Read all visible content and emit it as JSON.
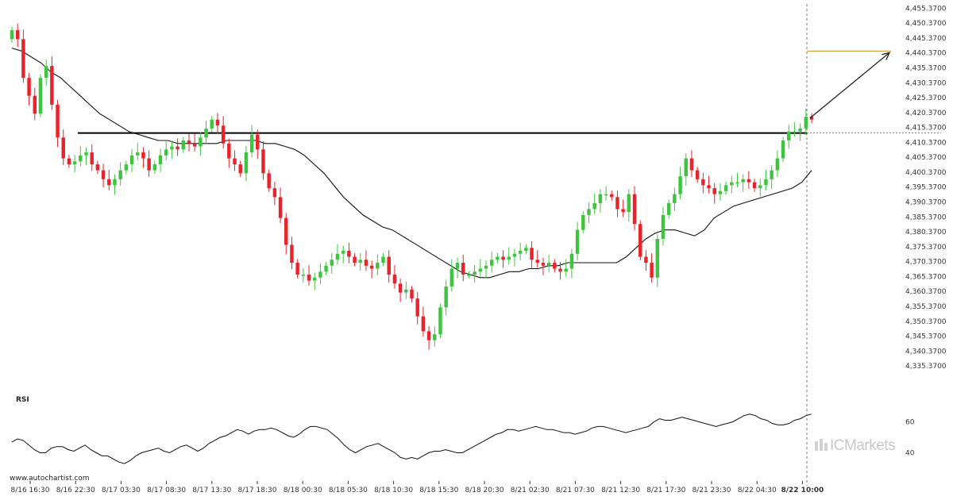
{
  "chart_data": {
    "type": "candlestick",
    "symbol_note": "",
    "price_axis": {
      "ticks": [
        "4,455.3700",
        "4,450.3700",
        "4,445.3700",
        "4,440.3700",
        "4,435.3700",
        "4,430.3700",
        "4,425.3700",
        "4,420.3700",
        "4,415.3700",
        "4,410.3700",
        "4,405.3700",
        "4,400.3700",
        "4,395.3700",
        "4,390.3700",
        "4,385.3700",
        "4,380.3700",
        "4,375.3700",
        "4,370.3700",
        "4,365.3700",
        "4,360.3700",
        "4,355.3700",
        "4,350.3700",
        "4,345.3700",
        "4,340.3700",
        "4,335.3700"
      ],
      "range": [
        4333,
        4456
      ]
    },
    "time_axis": {
      "ticks": [
        "8/16 16:30",
        "8/16 22:30",
        "8/17 03:30",
        "8/17 08:30",
        "8/17 13:30",
        "8/17 18:30",
        "8/18 00:30",
        "8/18 05:30",
        "8/18 10:30",
        "8/18 15:30",
        "8/18 20:30",
        "8/21 02:30",
        "8/21 07:30",
        "8/21 12:30",
        "8/21 17:30",
        "8/21 23:30",
        "8/22 04:30",
        "8/22 10:00"
      ],
      "highlight": "8/22 10:00"
    },
    "close_series": [
      4448,
      4445,
      4432,
      4426,
      4420,
      4432,
      4436,
      4423,
      4412,
      4405,
      4403,
      4404,
      4406,
      4407,
      4403,
      4401,
      4398,
      4396,
      4398,
      4401,
      4403,
      4406,
      4407,
      4405,
      4401,
      4403,
      4406,
      4408,
      4409,
      4408,
      4411,
      4410,
      4409,
      4412,
      4415,
      4418,
      4416,
      4410,
      4405,
      4403,
      4400,
      4407,
      4413,
      4408,
      4400,
      4395,
      4392,
      4385,
      4376,
      4370,
      4366,
      4366,
      4364,
      4365,
      4367,
      4369,
      4371,
      4373,
      4374,
      4372,
      4370,
      4371,
      4369,
      4368,
      4370,
      4372,
      4366,
      4363,
      4360,
      4361,
      4358,
      4352,
      4347,
      4344,
      4346,
      4355,
      4362,
      4368,
      4370,
      4366,
      4366,
      4367,
      4368,
      4369,
      4371,
      4372,
      4371,
      4372,
      4373,
      4374,
      4375,
      4371,
      4370,
      4369,
      4370,
      4368,
      4367,
      4368,
      4373,
      4381,
      4386,
      4388,
      4390,
      4393,
      4393,
      4392,
      4388,
      4387,
      4393,
      4383,
      4372,
      4370,
      4365,
      4378,
      4386,
      4390,
      4393,
      4399,
      4405,
      4401,
      4398,
      4396,
      4395,
      4393,
      4394,
      4396,
      4397,
      4397,
      4398,
      4397,
      4395,
      4396,
      4398,
      4401,
      4405,
      4411,
      4414,
      4414,
      4415,
      4419,
      4418
    ],
    "moving_average": [
      4442,
      4441,
      4439,
      4437,
      4434,
      4432,
      4429,
      4426,
      4423,
      4420,
      4418,
      4416,
      4414,
      4413,
      4412,
      4411,
      4411,
      4410,
      4410,
      4410,
      4410,
      4410,
      4411,
      4411,
      4411,
      4411,
      4410,
      4410,
      4409,
      4408,
      4406,
      4403,
      4400,
      4396,
      4392,
      4389,
      4386,
      4384,
      4382,
      4381,
      4379,
      4377,
      4375,
      4373,
      4371,
      4369,
      4367,
      4366,
      4365,
      4365,
      4366,
      4367,
      4367,
      4368,
      4368,
      4369,
      4369,
      4370,
      4370,
      4370,
      4370,
      4370,
      4370,
      4372,
      4375,
      4378,
      4380,
      4381,
      4381,
      4380,
      4379,
      4381,
      4385,
      4387,
      4389,
      4390,
      4391,
      4392,
      4393,
      4394,
      4395,
      4397,
      4401
    ],
    "indicator_lines": {
      "resistance": 4413.5,
      "target": 4441,
      "current_level": 4413.5
    },
    "rsi": {
      "label": "RSI",
      "ticks": [
        "60",
        "40"
      ],
      "values": [
        47,
        49,
        48,
        45,
        42,
        40,
        40,
        43,
        44,
        44,
        42,
        41,
        43,
        45,
        42,
        40,
        38,
        38,
        36,
        34,
        33,
        35,
        38,
        40,
        41,
        42,
        43,
        41,
        40,
        42,
        44,
        45,
        43,
        41,
        43,
        46,
        48,
        50,
        51,
        53,
        55,
        54,
        52,
        54,
        55,
        55,
        56,
        55,
        53,
        51,
        50,
        52,
        55,
        57,
        57,
        56,
        55,
        52,
        49,
        45,
        42,
        40,
        42,
        44,
        45,
        46,
        44,
        42,
        40,
        37,
        36,
        37,
        36,
        38,
        40,
        41,
        41,
        42,
        41,
        40,
        40,
        42,
        44,
        46,
        48,
        50,
        52,
        53,
        55,
        55,
        54,
        55,
        56,
        57,
        56,
        55,
        55,
        54,
        53,
        53,
        52,
        53,
        54,
        56,
        57,
        57,
        56,
        55,
        54,
        53,
        54,
        55,
        56,
        57,
        60,
        62,
        61,
        61,
        62,
        63,
        62,
        61,
        60,
        59,
        58,
        57,
        58,
        59,
        60,
        62,
        64,
        65,
        64,
        62,
        61,
        59,
        58,
        58,
        59,
        61,
        62,
        64,
        65
      ],
      "range": [
        30,
        70
      ]
    }
  },
  "source_label": "www.autochartist.com",
  "brand": "ICMarkets"
}
